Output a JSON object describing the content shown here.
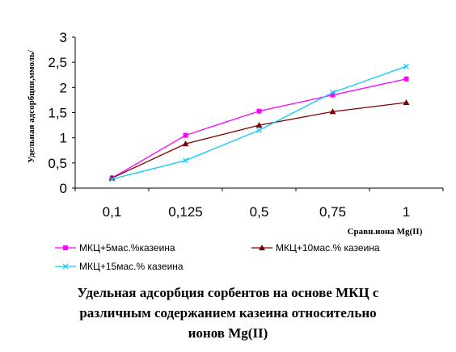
{
  "chart_data": {
    "type": "line",
    "categories": [
      "0,1",
      "0,125",
      "0,5",
      "0,75",
      "1"
    ],
    "ylim": [
      0,
      3
    ],
    "y_ticks": [
      "0",
      "0,5",
      "1",
      "1,5",
      "2",
      "2,5",
      "3"
    ],
    "xlabel": "Сравн.иона Mg(II)",
    "ylabel": "Удельная адсорбция,ммоль/",
    "grid": false,
    "legend_position": "bottom",
    "series": [
      {
        "name": "МКЦ+5мас.%казеина",
        "values": [
          0.2,
          1.05,
          1.53,
          1.85,
          2.17
        ],
        "color": "#ff00ff",
        "marker": "square"
      },
      {
        "name": "МКЦ+10мас.% казеина",
        "values": [
          0.2,
          0.88,
          1.25,
          1.52,
          1.7
        ],
        "color": "#800000",
        "marker": "triangle"
      },
      {
        "name": "МКЦ+15мас.% казеина",
        "values": [
          0.18,
          0.55,
          1.15,
          1.9,
          2.42
        ],
        "color": "#00ccff",
        "marker": "x"
      }
    ]
  },
  "caption": {
    "line1": "Удельная адсорбция сорбентов на основе МКЦ с",
    "line2": "различным содержанием казеина относительно",
    "line3": "ионов Mg(II)"
  }
}
